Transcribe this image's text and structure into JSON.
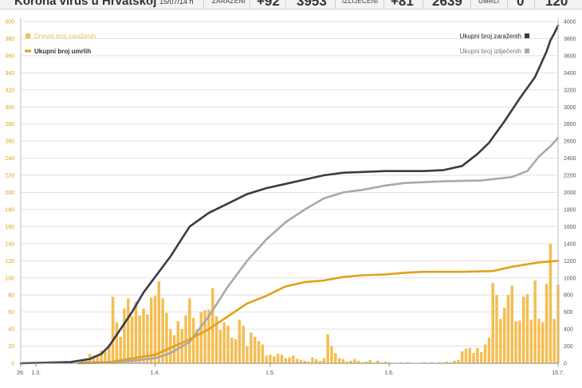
{
  "header": {
    "title": "Korona virus u Hrvatskoj",
    "date": "15/07/14 h",
    "infected_label": "ZARAŽENI",
    "infected_delta": "+92",
    "infected_total": "3953",
    "recovered_label": "IZLIJEČENI",
    "recovered_delta": "+81",
    "recovered_total": "2639",
    "deaths_label": "UMRLI",
    "deaths_delta": "0",
    "deaths_total": "120"
  },
  "colors": {
    "bars": "#f5bd50",
    "infected_line": "#3a3a48",
    "recovered_line": "#a8a8ae",
    "deaths_line": "#e3a01c"
  },
  "chart_data": {
    "type": "bar+line",
    "left_axis": {
      "range": [
        0,
        400
      ],
      "ticks": [
        "0",
        "20",
        "40",
        "60",
        "80",
        "100",
        "120",
        "140",
        "160",
        "180",
        "200",
        "220",
        "240",
        "260",
        "280",
        "300",
        "320",
        "340",
        "360",
        "380",
        "400"
      ]
    },
    "right_axis": {
      "range": [
        0,
        4000
      ],
      "ticks": [
        "0",
        "200",
        "400",
        "600",
        "800",
        "1000",
        "1200",
        "1400",
        "1600",
        "1800",
        "2000",
        "2200",
        "2400",
        "2600",
        "2800",
        "3000",
        "3200",
        "3400",
        "3600",
        "3800",
        "4000"
      ]
    },
    "x_axis": {
      "start": "2020-02-26",
      "end": "2020-07-15",
      "ticks": [
        [
          "2020-02-26",
          "26."
        ],
        [
          "2020-03-01",
          "1.3."
        ],
        [
          "2020-04-01",
          "1.4."
        ],
        [
          "2020-05-01",
          "1.5."
        ],
        [
          "2020-06-01",
          "1.6."
        ],
        [
          "2020-07-15",
          "15.7."
        ]
      ]
    },
    "grid": true,
    "legend": [
      {
        "label": "Dnevni broj zaraženih",
        "position": "top-left",
        "kind": "square",
        "color": "#f5bd50"
      },
      {
        "label": "Ukupni broj umrlih",
        "position": "top-left",
        "kind": "line",
        "color": "#e3a01c"
      },
      {
        "label": "Ukupni broj zaraženih",
        "position": "top-right",
        "kind": "square",
        "color": "#3a3a48"
      },
      {
        "label": "Ukupni broj izliječenih",
        "position": "top-right",
        "kind": "square",
        "color": "#a8a8ae"
      }
    ],
    "daily_new_cases": [
      [
        "2020-03-12",
        2
      ],
      [
        "2020-03-13",
        5
      ],
      [
        "2020-03-14",
        6
      ],
      [
        "2020-03-15",
        11
      ],
      [
        "2020-03-16",
        9
      ],
      [
        "2020-03-17",
        8
      ],
      [
        "2020-03-18",
        15
      ],
      [
        "2020-03-19",
        14
      ],
      [
        "2020-03-20",
        22
      ],
      [
        "2020-03-21",
        78
      ],
      [
        "2020-03-22",
        48
      ],
      [
        "2020-03-23",
        31
      ],
      [
        "2020-03-24",
        64
      ],
      [
        "2020-03-25",
        76
      ],
      [
        "2020-03-26",
        55
      ],
      [
        "2020-03-27",
        72
      ],
      [
        "2020-03-28",
        56
      ],
      [
        "2020-03-29",
        64
      ],
      [
        "2020-03-30",
        57
      ],
      [
        "2020-03-31",
        77
      ],
      [
        "2020-04-01",
        79
      ],
      [
        "2020-04-02",
        96
      ],
      [
        "2020-04-03",
        76
      ],
      [
        "2020-04-04",
        59
      ],
      [
        "2020-04-05",
        40
      ],
      [
        "2020-04-06",
        33
      ],
      [
        "2020-04-07",
        49
      ],
      [
        "2020-04-08",
        40
      ],
      [
        "2020-04-09",
        56
      ],
      [
        "2020-04-10",
        76
      ],
      [
        "2020-04-11",
        53
      ],
      [
        "2020-04-12",
        40
      ],
      [
        "2020-04-13",
        60
      ],
      [
        "2020-04-14",
        62
      ],
      [
        "2020-04-15",
        63
      ],
      [
        "2020-04-16",
        88
      ],
      [
        "2020-04-17",
        55
      ],
      [
        "2020-04-18",
        39
      ],
      [
        "2020-04-19",
        48
      ],
      [
        "2020-04-20",
        44
      ],
      [
        "2020-04-21",
        30
      ],
      [
        "2020-04-22",
        28
      ],
      [
        "2020-04-23",
        51
      ],
      [
        "2020-04-24",
        44
      ],
      [
        "2020-04-25",
        20
      ],
      [
        "2020-04-26",
        36
      ],
      [
        "2020-04-27",
        31
      ],
      [
        "2020-04-28",
        26
      ],
      [
        "2020-04-29",
        22
      ],
      [
        "2020-04-30",
        9
      ],
      [
        "2020-05-01",
        10
      ],
      [
        "2020-05-02",
        8
      ],
      [
        "2020-05-03",
        11
      ],
      [
        "2020-05-04",
        10
      ],
      [
        "2020-05-05",
        6
      ],
      [
        "2020-05-06",
        7
      ],
      [
        "2020-05-07",
        9
      ],
      [
        "2020-05-08",
        5
      ],
      [
        "2020-05-09",
        4
      ],
      [
        "2020-05-10",
        3
      ],
      [
        "2020-05-11",
        2
      ],
      [
        "2020-05-12",
        7
      ],
      [
        "2020-05-13",
        5
      ],
      [
        "2020-05-14",
        3
      ],
      [
        "2020-05-15",
        6
      ],
      [
        "2020-05-16",
        34
      ],
      [
        "2020-05-17",
        20
      ],
      [
        "2020-05-18",
        12
      ],
      [
        "2020-05-19",
        6
      ],
      [
        "2020-05-20",
        5
      ],
      [
        "2020-05-21",
        2
      ],
      [
        "2020-05-22",
        3
      ],
      [
        "2020-05-23",
        5
      ],
      [
        "2020-05-24",
        3
      ],
      [
        "2020-05-25",
        1
      ],
      [
        "2020-05-26",
        2
      ],
      [
        "2020-05-27",
        4
      ],
      [
        "2020-05-28",
        1
      ],
      [
        "2020-05-29",
        3
      ],
      [
        "2020-05-30",
        1
      ],
      [
        "2020-05-31",
        2
      ],
      [
        "2020-06-01",
        1
      ],
      [
        "2020-06-02",
        0
      ],
      [
        "2020-06-03",
        0
      ],
      [
        "2020-06-04",
        1
      ],
      [
        "2020-06-05",
        0
      ],
      [
        "2020-06-06",
        1
      ],
      [
        "2020-06-07",
        0
      ],
      [
        "2020-06-08",
        0
      ],
      [
        "2020-06-09",
        0
      ],
      [
        "2020-06-10",
        1
      ],
      [
        "2020-06-11",
        0
      ],
      [
        "2020-06-12",
        1
      ],
      [
        "2020-06-13",
        0
      ],
      [
        "2020-06-14",
        1
      ],
      [
        "2020-06-15",
        1
      ],
      [
        "2020-06-16",
        2
      ],
      [
        "2020-06-17",
        1
      ],
      [
        "2020-06-18",
        3
      ],
      [
        "2020-06-19",
        4
      ],
      [
        "2020-06-20",
        14
      ],
      [
        "2020-06-21",
        17
      ],
      [
        "2020-06-22",
        18
      ],
      [
        "2020-06-23",
        12
      ],
      [
        "2020-06-24",
        18
      ],
      [
        "2020-06-25",
        13
      ],
      [
        "2020-06-26",
        22
      ],
      [
        "2020-06-27",
        30
      ],
      [
        "2020-06-28",
        94
      ],
      [
        "2020-06-29",
        80
      ],
      [
        "2020-06-30",
        52
      ],
      [
        "2020-07-01",
        65
      ],
      [
        "2020-07-02",
        80
      ],
      [
        "2020-07-03",
        91
      ],
      [
        "2020-07-04",
        49
      ],
      [
        "2020-07-05",
        50
      ],
      [
        "2020-07-06",
        78
      ],
      [
        "2020-07-07",
        81
      ],
      [
        "2020-07-08",
        51
      ],
      [
        "2020-07-09",
        97
      ],
      [
        "2020-07-10",
        52
      ],
      [
        "2020-07-11",
        48
      ],
      [
        "2020-07-12",
        93
      ],
      [
        "2020-07-13",
        140
      ],
      [
        "2020-07-14",
        52
      ],
      [
        "2020-07-15",
        92
      ]
    ],
    "series": [
      {
        "name": "Ukupni broj zaraženih",
        "axis": "right",
        "points": [
          [
            "2020-02-26",
            0
          ],
          [
            "2020-03-01",
            5
          ],
          [
            "2020-03-10",
            15
          ],
          [
            "2020-03-15",
            50
          ],
          [
            "2020-03-18",
            110
          ],
          [
            "2020-03-20",
            200
          ],
          [
            "2020-03-23",
            400
          ],
          [
            "2020-03-26",
            600
          ],
          [
            "2020-03-29",
            830
          ],
          [
            "2020-04-01",
            1010
          ],
          [
            "2020-04-05",
            1250
          ],
          [
            "2020-04-10",
            1600
          ],
          [
            "2020-04-15",
            1760
          ],
          [
            "2020-04-20",
            1870
          ],
          [
            "2020-04-25",
            1980
          ],
          [
            "2020-04-30",
            2050
          ],
          [
            "2020-05-05",
            2100
          ],
          [
            "2020-05-10",
            2150
          ],
          [
            "2020-05-15",
            2200
          ],
          [
            "2020-05-20",
            2230
          ],
          [
            "2020-05-31",
            2250
          ],
          [
            "2020-06-10",
            2250
          ],
          [
            "2020-06-15",
            2260
          ],
          [
            "2020-06-20",
            2310
          ],
          [
            "2020-06-24",
            2450
          ],
          [
            "2020-06-27",
            2580
          ],
          [
            "2020-07-01",
            2830
          ],
          [
            "2020-07-05",
            3100
          ],
          [
            "2020-07-09",
            3350
          ],
          [
            "2020-07-12",
            3650
          ],
          [
            "2020-07-13",
            3780
          ],
          [
            "2020-07-14",
            3860
          ],
          [
            "2020-07-15",
            3953
          ]
        ]
      },
      {
        "name": "Ukupni broj izliječenih",
        "axis": "right",
        "points": [
          [
            "2020-03-12",
            10
          ],
          [
            "2020-03-20",
            15
          ],
          [
            "2020-03-25",
            25
          ],
          [
            "2020-04-01",
            60
          ],
          [
            "2020-04-05",
            120
          ],
          [
            "2020-04-10",
            250
          ],
          [
            "2020-04-15",
            550
          ],
          [
            "2020-04-20",
            900
          ],
          [
            "2020-04-25",
            1200
          ],
          [
            "2020-04-30",
            1450
          ],
          [
            "2020-05-05",
            1650
          ],
          [
            "2020-05-10",
            1800
          ],
          [
            "2020-05-15",
            1930
          ],
          [
            "2020-05-20",
            2000
          ],
          [
            "2020-05-25",
            2030
          ],
          [
            "2020-05-31",
            2080
          ],
          [
            "2020-06-05",
            2110
          ],
          [
            "2020-06-15",
            2130
          ],
          [
            "2020-06-25",
            2140
          ],
          [
            "2020-07-03",
            2180
          ],
          [
            "2020-07-07",
            2250
          ],
          [
            "2020-07-10",
            2420
          ],
          [
            "2020-07-13",
            2540
          ],
          [
            "2020-07-15",
            2639
          ]
        ]
      },
      {
        "name": "Ukupni broj umrlih",
        "axis": "left",
        "points": [
          [
            "2020-03-12",
            0
          ],
          [
            "2020-03-20",
            1
          ],
          [
            "2020-03-25",
            5
          ],
          [
            "2020-04-01",
            10
          ],
          [
            "2020-04-05",
            18
          ],
          [
            "2020-04-10",
            28
          ],
          [
            "2020-04-15",
            40
          ],
          [
            "2020-04-20",
            55
          ],
          [
            "2020-04-25",
            70
          ],
          [
            "2020-04-30",
            79
          ],
          [
            "2020-05-05",
            90
          ],
          [
            "2020-05-10",
            95
          ],
          [
            "2020-05-15",
            97
          ],
          [
            "2020-05-20",
            101
          ],
          [
            "2020-05-25",
            103
          ],
          [
            "2020-05-31",
            104
          ],
          [
            "2020-06-05",
            106
          ],
          [
            "2020-06-10",
            107
          ],
          [
            "2020-06-20",
            107
          ],
          [
            "2020-06-28",
            108
          ],
          [
            "2020-07-03",
            113
          ],
          [
            "2020-07-07",
            116
          ],
          [
            "2020-07-10",
            118
          ],
          [
            "2020-07-15",
            120
          ]
        ]
      }
    ]
  }
}
